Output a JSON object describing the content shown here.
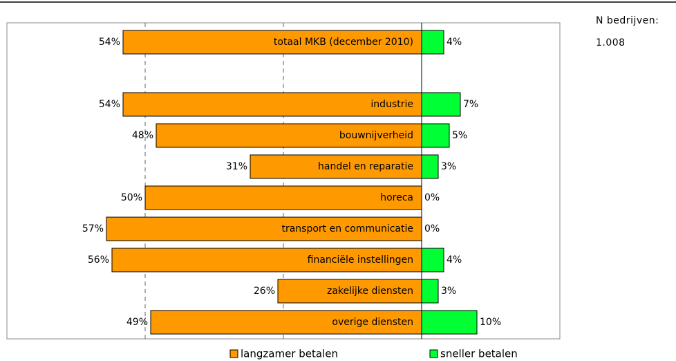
{
  "chart_data": {
    "type": "diverging-bar",
    "categories": [
      "totaal MKB (december 2010)",
      null,
      "industrie",
      "bouwnijverheid",
      "handel en reparatie",
      "horeca",
      "transport en communicatie",
      "financiële instellingen",
      "zakelijke diensten",
      "overige diensten"
    ],
    "series": [
      {
        "name": "langzamer betalen",
        "color": "#ff9900",
        "direction": "left",
        "values": [
          54,
          null,
          54,
          48,
          31,
          50,
          57,
          56,
          26,
          49
        ],
        "value_labels": [
          "54%",
          null,
          "54%",
          "48%",
          "31%",
          "50%",
          "57%",
          "56%",
          "26%",
          "49%"
        ]
      },
      {
        "name": "sneller betalen",
        "color": "#00ff33",
        "direction": "right",
        "values": [
          4,
          null,
          7,
          5,
          3,
          0,
          0,
          4,
          3,
          10
        ],
        "value_labels": [
          "4%",
          null,
          "7%",
          "5%",
          "3%",
          "0%",
          "0%",
          "4%",
          "3%",
          "10%"
        ]
      }
    ],
    "xlim": [
      -75,
      25
    ],
    "xticks": [
      -50,
      -25
    ],
    "grid": true,
    "annotations": [
      "N bedrijven:",
      "1.008"
    ]
  }
}
